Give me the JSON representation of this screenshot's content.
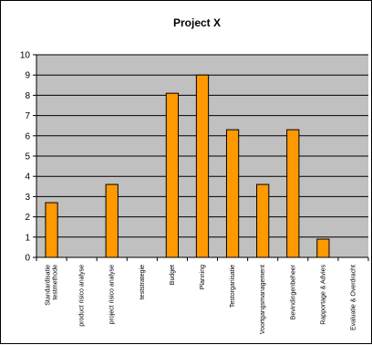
{
  "chart_data": {
    "type": "bar",
    "title": "Project X",
    "xlabel": "",
    "ylabel": "",
    "ylim": [
      0,
      10
    ],
    "yticks": [
      0,
      1,
      2,
      3,
      4,
      5,
      6,
      7,
      8,
      9,
      10
    ],
    "categories": [
      "Standardisatie testmethode",
      "product risico analyse",
      "project risico analyse",
      "teststrategie",
      "Budget",
      "Planning",
      "Testorganisatie",
      "Voortgangsmanagement",
      "Bevindingenbeheer",
      "Rapportage & Advies",
      "Evaluatie & Overdracht"
    ],
    "values": [
      2.7,
      0,
      3.6,
      0,
      8.1,
      9.0,
      6.3,
      3.6,
      6.3,
      0.9,
      0
    ],
    "grid": true,
    "legend": "none",
    "colors": {
      "bar_fill": "#FF9900",
      "bar_stroke": "#000000",
      "plot_background": "#C0C0C0",
      "gridline": "#000000",
      "frame": "#000000"
    }
  }
}
